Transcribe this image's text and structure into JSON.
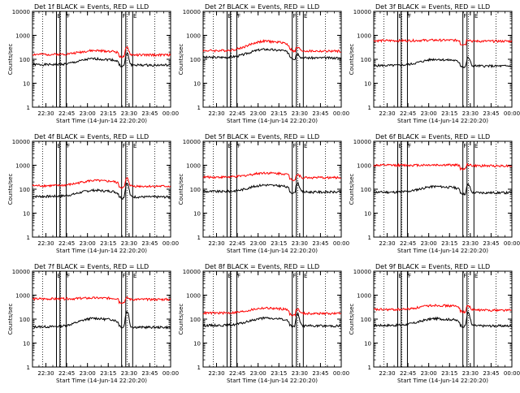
{
  "colors": {
    "events": "#000000",
    "lld": "#ff0000",
    "axis": "#000000",
    "background": "#ffffff"
  },
  "common": {
    "ylabel": "Counts/sec",
    "xlabel": "Start Time (14-Jun-14 22:20:20)",
    "x_ticks": [
      "22:30",
      "22:45",
      "23:00",
      "23:15",
      "23:30",
      "23:45",
      "00:00"
    ],
    "y_ticks": [
      "1",
      "10",
      "100",
      "1000",
      "10000"
    ],
    "y_scale": "log",
    "ylim": [
      1,
      10000
    ],
    "xlim": [
      "22:20:20",
      "00:00"
    ],
    "marker_labels": [
      "E",
      "F",
      "F",
      "E"
    ]
  },
  "chart_data": [
    {
      "type": "line",
      "title": "Det 1f BLACK = Events, RED = LLD",
      "series": [
        {
          "name": "Events",
          "level": 60,
          "bump": 45,
          "spike": 110,
          "seed": 1
        },
        {
          "name": "LLD",
          "level": 160,
          "bump": 70,
          "spike": 150,
          "seed": 2
        }
      ]
    },
    {
      "type": "line",
      "title": "Det 2f BLACK = Events, RED = LLD",
      "series": [
        {
          "name": "Events",
          "level": 120,
          "bump": 140,
          "spike": 40,
          "seed": 3
        },
        {
          "name": "LLD",
          "level": 230,
          "bump": 340,
          "spike": 60,
          "seed": 4
        }
      ]
    },
    {
      "type": "line",
      "title": "Det 3f BLACK = Events, RED = LLD",
      "series": [
        {
          "name": "Events",
          "level": 55,
          "bump": 45,
          "spike": 60,
          "seed": 5
        },
        {
          "name": "LLD",
          "level": 600,
          "bump": 30,
          "spike": 60,
          "seed": 6
        }
      ]
    },
    {
      "type": "line",
      "title": "Det 4f BLACK = Events, RED = LLD",
      "series": [
        {
          "name": "Events",
          "level": 50,
          "bump": 40,
          "spike": 130,
          "seed": 7
        },
        {
          "name": "LLD",
          "level": 140,
          "bump": 90,
          "spike": 140,
          "seed": 8
        }
      ]
    },
    {
      "type": "line",
      "title": "Det 5f BLACK = Events, RED = LLD",
      "series": [
        {
          "name": "Events",
          "level": 80,
          "bump": 70,
          "spike": 100,
          "seed": 9
        },
        {
          "name": "LLD",
          "level": 320,
          "bump": 160,
          "spike": 80,
          "seed": 10
        }
      ]
    },
    {
      "type": "line",
      "title": "Det 6f BLACK = Events, RED = LLD",
      "series": [
        {
          "name": "Events",
          "level": 75,
          "bump": 55,
          "spike": 80,
          "seed": 11
        },
        {
          "name": "LLD",
          "level": 1000,
          "bump": 30,
          "spike": 80,
          "seed": 12
        }
      ]
    },
    {
      "type": "line",
      "title": "Det 7f BLACK = Events, RED = LLD",
      "series": [
        {
          "name": "Events",
          "level": 48,
          "bump": 60,
          "spike": 160,
          "seed": 13
        },
        {
          "name": "LLD",
          "level": 700,
          "bump": 60,
          "spike": 60,
          "seed": 14
        }
      ]
    },
    {
      "type": "line",
      "title": "Det 8f BLACK = Events, RED = LLD",
      "series": [
        {
          "name": "Events",
          "level": 55,
          "bump": 55,
          "spike": 110,
          "seed": 15
        },
        {
          "name": "LLD",
          "level": 180,
          "bump": 110,
          "spike": 80,
          "seed": 16
        }
      ]
    },
    {
      "type": "line",
      "title": "Det 9f BLACK = Events, RED = LLD",
      "series": [
        {
          "name": "Events",
          "level": 55,
          "bump": 50,
          "spike": 130,
          "seed": 17
        },
        {
          "name": "LLD",
          "level": 250,
          "bump": 130,
          "spike": 120,
          "seed": 18
        }
      ]
    }
  ]
}
